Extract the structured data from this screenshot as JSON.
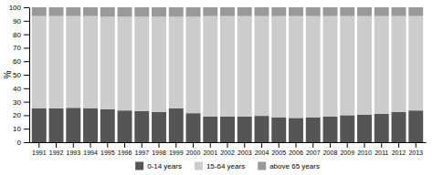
{
  "chart_data": {
    "type": "bar",
    "stacked": true,
    "ylabel": "%",
    "categories": [
      "1991",
      "1992",
      "1993",
      "1994",
      "1995",
      "1996",
      "1997",
      "1998",
      "1999",
      "2000",
      "2001",
      "2002",
      "2003",
      "2004",
      "2005",
      "2006",
      "2007",
      "2008",
      "2009",
      "2010",
      "2011",
      "2012",
      "2013"
    ],
    "series": [
      {
        "name": "0-14 years",
        "color": "#555555",
        "values": [
          25.0,
          25.0,
          25.5,
          25.0,
          24.5,
          23.5,
          23.0,
          22.5,
          25.0,
          21.5,
          19.0,
          19.0,
          19.0,
          19.5,
          18.5,
          18.0,
          18.5,
          19.0,
          20.0,
          20.5,
          21.0,
          22.5,
          23.5
        ]
      },
      {
        "name": "15-64 years",
        "color": "#cccccc",
        "values": [
          68.5,
          68.5,
          68.0,
          68.5,
          68.5,
          69.5,
          70.0,
          70.5,
          68.0,
          71.5,
          74.5,
          74.5,
          74.5,
          74.0,
          75.0,
          75.5,
          75.0,
          74.5,
          73.5,
          73.0,
          72.5,
          71.0,
          70.0
        ]
      },
      {
        "name": "above 65 years",
        "color": "#999999",
        "values": [
          6.5,
          6.5,
          6.5,
          6.5,
          7.0,
          7.0,
          7.0,
          7.0,
          7.0,
          7.0,
          6.5,
          6.5,
          6.5,
          6.5,
          6.5,
          6.5,
          6.5,
          6.5,
          6.5,
          6.5,
          6.5,
          6.5,
          6.5
        ]
      }
    ],
    "ylim": [
      0,
      100
    ],
    "yticks": [
      0,
      10,
      20,
      30,
      40,
      50,
      60,
      70,
      80,
      90,
      100
    ],
    "grid": false,
    "legend": "bottom"
  }
}
